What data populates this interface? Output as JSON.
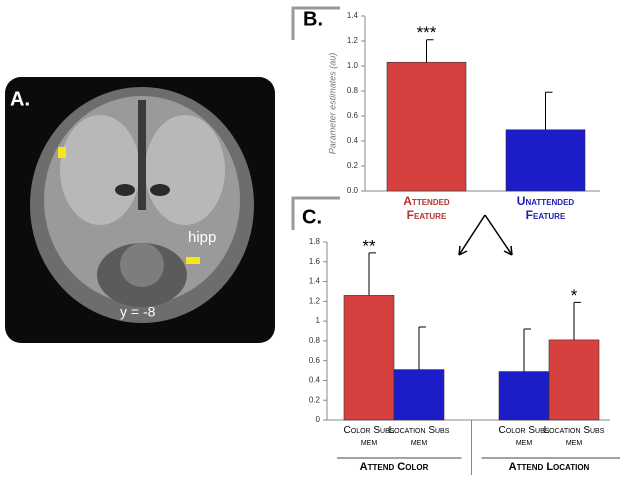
{
  "panel_a": {
    "label": "A.",
    "region_label": "hipp",
    "slice_label": "y = -8"
  },
  "chart_data": [
    {
      "type": "bar",
      "panel_label": "B.",
      "y_label": "Parameter estimates (au)",
      "categories": [
        "Attended Feature",
        "Unattended Feature"
      ],
      "values": [
        1.03,
        0.49
      ],
      "errors": [
        0.18,
        0.3
      ],
      "significance": [
        "***",
        null
      ],
      "colors": [
        "#d6403e",
        "#1c1cc8"
      ],
      "category_colors": [
        "#b8322c",
        "#1c1cb0"
      ],
      "ylim": [
        0,
        1.4
      ],
      "yticks": [
        {
          "value": 0,
          "label": "0.0"
        },
        {
          "value": 0.2,
          "label": "0.2"
        },
        {
          "value": 0.4,
          "label": "0.4"
        },
        {
          "value": 0.6,
          "label": "0.6"
        },
        {
          "value": 0.8,
          "label": "0.8"
        },
        {
          "value": 1,
          "label": "1.0"
        },
        {
          "value": 1.2,
          "label": "1.2"
        },
        {
          "value": 1.4,
          "label": "1.4"
        }
      ]
    },
    {
      "type": "bar",
      "panel_label": "C.",
      "categories": [
        "Color Subs mem",
        "Location Subs mem",
        "Color Subs mem",
        "Location Subs mem"
      ],
      "values": [
        1.26,
        0.51,
        0.49,
        0.81
      ],
      "errors": [
        0.43,
        0.43,
        0.43,
        0.38
      ],
      "significance": [
        "**",
        null,
        null,
        "*"
      ],
      "colors": [
        "#d6403e",
        "#1c1cc8",
        "#1c1cc8",
        "#d6403e"
      ],
      "groups": [
        "Attend Color",
        "Attend Location"
      ],
      "ylim": [
        0,
        1.8
      ],
      "yticks": [
        0,
        0.2,
        0.4,
        0.6,
        0.8,
        1,
        1.2,
        1.4,
        1.6,
        1.8
      ]
    }
  ]
}
